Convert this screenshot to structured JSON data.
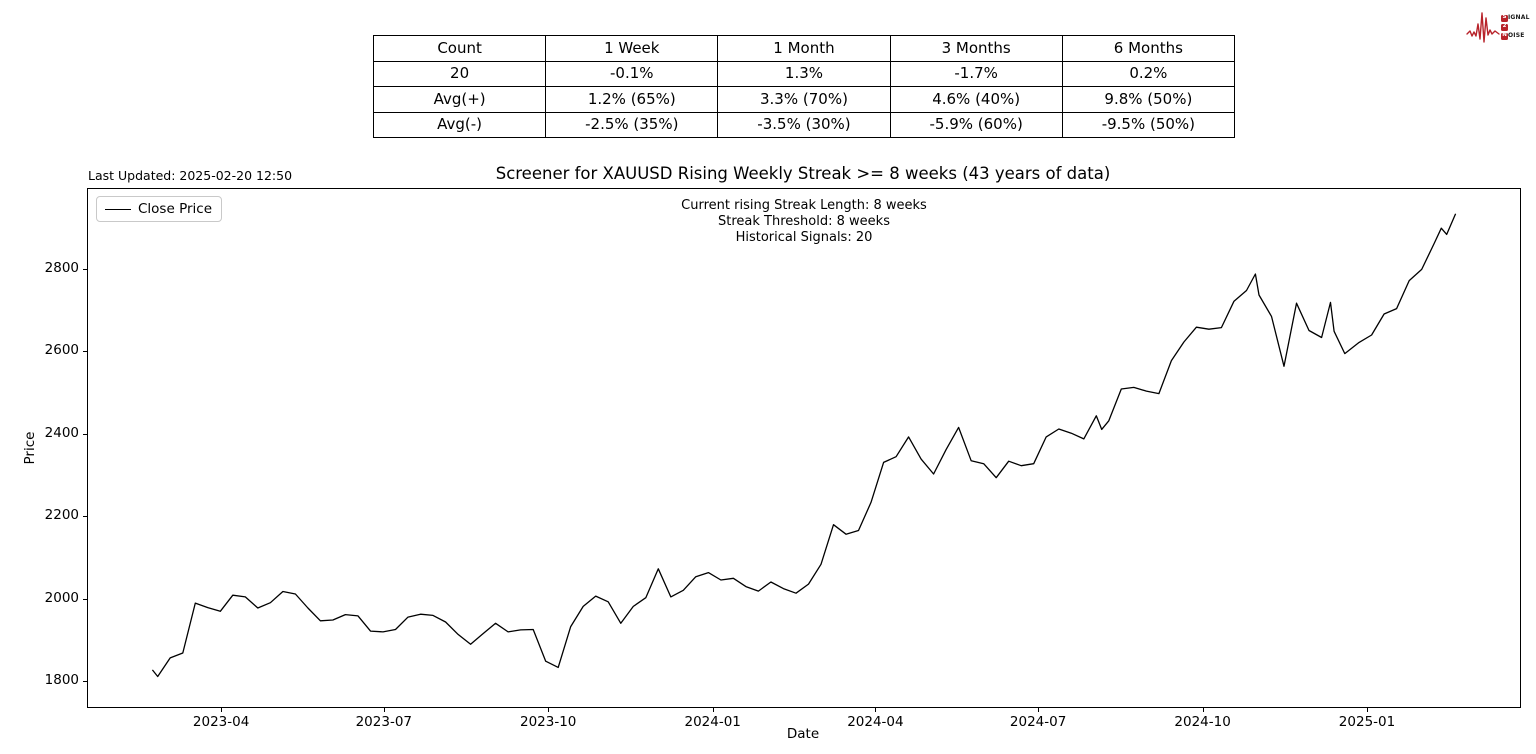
{
  "logo": {
    "color": "#b8232a",
    "rows": [
      {
        "badge": "S",
        "rest": "IGNAL"
      },
      {
        "badge": "2",
        "rest": ""
      },
      {
        "badge": "N",
        "rest": "OISE"
      }
    ]
  },
  "last_updated": "Last Updated: 2025-02-20 12:50",
  "stats_table": {
    "headers": [
      "Count",
      "1 Week",
      "1 Month",
      "3 Months",
      "6 Months"
    ],
    "rows": [
      [
        "20",
        "-0.1%",
        "1.3%",
        "-1.7%",
        "0.2%"
      ],
      [
        "Avg(+)",
        "1.2% (65%)",
        "3.3% (70%)",
        "4.6% (40%)",
        "9.8% (50%)"
      ],
      [
        "Avg(-)",
        "-2.5% (35%)",
        "-3.5% (30%)",
        "-5.9% (60%)",
        "-9.5% (50%)"
      ]
    ]
  },
  "chart_data": {
    "type": "line",
    "title": "Screener for XAUUSD Rising Weekly Streak >= 8 weeks (43 years of data)",
    "xlabel": "Date",
    "ylabel": "Price",
    "legend": [
      "Close Price"
    ],
    "legend_position": "upper left",
    "annotation_lines": [
      "Current rising Streak Length: 8 weeks",
      "Streak Threshold: 8 weeks",
      "Historical Signals: 20"
    ],
    "line_color": "#000000",
    "grid": false,
    "xlim": [
      "2023-01-16",
      "2025-03-27"
    ],
    "ylim": [
      1737,
      2993
    ],
    "y_ticks": [
      1800,
      2000,
      2200,
      2400,
      2600,
      2800
    ],
    "x_ticks": [
      {
        "date": "2023-04-01",
        "label": "2023-04"
      },
      {
        "date": "2023-07-01",
        "label": "2023-07"
      },
      {
        "date": "2023-10-01",
        "label": "2023-10"
      },
      {
        "date": "2024-01-01",
        "label": "2024-01"
      },
      {
        "date": "2024-04-01",
        "label": "2024-04"
      },
      {
        "date": "2024-07-01",
        "label": "2024-07"
      },
      {
        "date": "2024-10-01",
        "label": "2024-10"
      },
      {
        "date": "2025-01-01",
        "label": "2025-01"
      }
    ],
    "series": [
      {
        "name": "Close Price",
        "points": [
          [
            "2023-02-21",
            1827
          ],
          [
            "2023-02-24",
            1811
          ],
          [
            "2023-03-03",
            1856
          ],
          [
            "2023-03-10",
            1868
          ],
          [
            "2023-03-17",
            1989
          ],
          [
            "2023-03-24",
            1978
          ],
          [
            "2023-03-31",
            1969
          ],
          [
            "2023-04-07",
            2008
          ],
          [
            "2023-04-14",
            2004
          ],
          [
            "2023-04-21",
            1977
          ],
          [
            "2023-04-28",
            1990
          ],
          [
            "2023-05-05",
            2017
          ],
          [
            "2023-05-12",
            2011
          ],
          [
            "2023-05-19",
            1977
          ],
          [
            "2023-05-26",
            1946
          ],
          [
            "2023-06-02",
            1948
          ],
          [
            "2023-06-09",
            1961
          ],
          [
            "2023-06-16",
            1958
          ],
          [
            "2023-06-23",
            1921
          ],
          [
            "2023-06-30",
            1919
          ],
          [
            "2023-07-07",
            1925
          ],
          [
            "2023-07-14",
            1955
          ],
          [
            "2023-07-21",
            1962
          ],
          [
            "2023-07-28",
            1959
          ],
          [
            "2023-08-04",
            1943
          ],
          [
            "2023-08-11",
            1913
          ],
          [
            "2023-08-18",
            1889
          ],
          [
            "2023-08-25",
            1915
          ],
          [
            "2023-09-01",
            1940
          ],
          [
            "2023-09-08",
            1919
          ],
          [
            "2023-09-15",
            1924
          ],
          [
            "2023-09-22",
            1925
          ],
          [
            "2023-09-29",
            1848
          ],
          [
            "2023-10-06",
            1833
          ],
          [
            "2023-10-13",
            1932
          ],
          [
            "2023-10-20",
            1981
          ],
          [
            "2023-10-27",
            2006
          ],
          [
            "2023-11-03",
            1992
          ],
          [
            "2023-11-10",
            1940
          ],
          [
            "2023-11-17",
            1981
          ],
          [
            "2023-11-24",
            2002
          ],
          [
            "2023-12-01",
            2072
          ],
          [
            "2023-12-08",
            2004
          ],
          [
            "2023-12-15",
            2020
          ],
          [
            "2023-12-22",
            2053
          ],
          [
            "2023-12-29",
            2063
          ],
          [
            "2024-01-05",
            2045
          ],
          [
            "2024-01-12",
            2049
          ],
          [
            "2024-01-19",
            2029
          ],
          [
            "2024-01-26",
            2018
          ],
          [
            "2024-02-02",
            2040
          ],
          [
            "2024-02-09",
            2024
          ],
          [
            "2024-02-16",
            2013
          ],
          [
            "2024-02-23",
            2035
          ],
          [
            "2024-03-01",
            2083
          ],
          [
            "2024-03-08",
            2179
          ],
          [
            "2024-03-15",
            2156
          ],
          [
            "2024-03-22",
            2165
          ],
          [
            "2024-03-29",
            2233
          ],
          [
            "2024-04-05",
            2330
          ],
          [
            "2024-04-12",
            2344
          ],
          [
            "2024-04-19",
            2392
          ],
          [
            "2024-04-26",
            2338
          ],
          [
            "2024-05-03",
            2302
          ],
          [
            "2024-05-10",
            2361
          ],
          [
            "2024-05-17",
            2415
          ],
          [
            "2024-05-24",
            2334
          ],
          [
            "2024-05-31",
            2327
          ],
          [
            "2024-06-07",
            2293
          ],
          [
            "2024-06-14",
            2333
          ],
          [
            "2024-06-21",
            2322
          ],
          [
            "2024-06-28",
            2327
          ],
          [
            "2024-07-05",
            2392
          ],
          [
            "2024-07-12",
            2411
          ],
          [
            "2024-07-19",
            2401
          ],
          [
            "2024-07-26",
            2387
          ],
          [
            "2024-08-02",
            2443
          ],
          [
            "2024-08-05",
            2410
          ],
          [
            "2024-08-09",
            2431
          ],
          [
            "2024-08-16",
            2508
          ],
          [
            "2024-08-23",
            2512
          ],
          [
            "2024-08-30",
            2503
          ],
          [
            "2024-09-06",
            2497
          ],
          [
            "2024-09-13",
            2577
          ],
          [
            "2024-09-20",
            2622
          ],
          [
            "2024-09-27",
            2658
          ],
          [
            "2024-10-04",
            2653
          ],
          [
            "2024-10-11",
            2657
          ],
          [
            "2024-10-18",
            2721
          ],
          [
            "2024-10-25",
            2747
          ],
          [
            "2024-10-30",
            2787
          ],
          [
            "2024-11-01",
            2736
          ],
          [
            "2024-11-08",
            2684
          ],
          [
            "2024-11-15",
            2563
          ],
          [
            "2024-11-22",
            2716
          ],
          [
            "2024-11-29",
            2650
          ],
          [
            "2024-12-06",
            2633
          ],
          [
            "2024-12-11",
            2718
          ],
          [
            "2024-12-13",
            2648
          ],
          [
            "2024-12-19",
            2594
          ],
          [
            "2024-12-27",
            2621
          ],
          [
            "2025-01-03",
            2639
          ],
          [
            "2025-01-10",
            2690
          ],
          [
            "2025-01-17",
            2703
          ],
          [
            "2025-01-24",
            2771
          ],
          [
            "2025-01-31",
            2798
          ],
          [
            "2025-02-07",
            2861
          ],
          [
            "2025-02-11",
            2898
          ],
          [
            "2025-02-14",
            2883
          ],
          [
            "2025-02-19",
            2933
          ]
        ]
      }
    ]
  }
}
